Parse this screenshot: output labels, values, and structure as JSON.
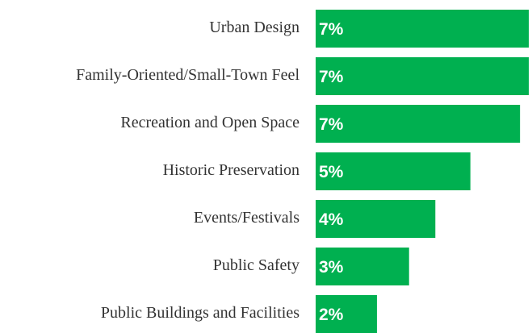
{
  "chart_data": {
    "type": "bar",
    "orientation": "horizontal",
    "categories": [
      "Urban Design",
      "Family-Oriented/Small-Town Feel",
      "Recreation and Open Space",
      "Historic Preservation",
      "Events/Festivals",
      "Public Safety",
      "Public Buildings and Facilities"
    ],
    "values": [
      7.3,
      7.3,
      7.0,
      5.3,
      4.1,
      3.2,
      2.1
    ],
    "value_labels": [
      "7%",
      "7%",
      "7%",
      "5%",
      "4%",
      "3%",
      "2%"
    ],
    "color": "#00b050"
  }
}
